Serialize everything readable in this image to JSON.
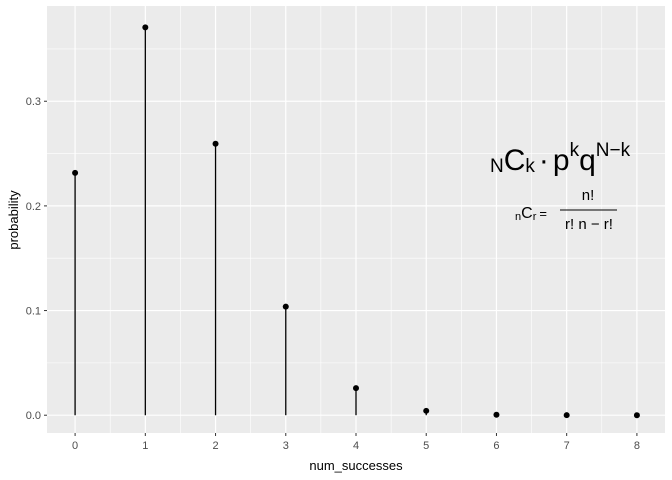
{
  "chart_data": {
    "type": "lollipop",
    "xlabel": "num_successes",
    "ylabel": "probability",
    "x": [
      0,
      1,
      2,
      3,
      4,
      5,
      6,
      7,
      8
    ],
    "values": [
      0.2316,
      0.3706,
      0.2594,
      0.1038,
      0.0259,
      0.0042,
      0.0004,
      2e-05,
      1e-06
    ],
    "xlim": [
      -0.4,
      8.4
    ],
    "ylim": [
      -0.017,
      0.391
    ],
    "y_ticks": [
      0.0,
      0.1,
      0.2,
      0.3
    ],
    "y_tick_labels": [
      "0.0",
      "0.1",
      "0.2",
      "0.3"
    ],
    "x_tick_labels": [
      "0",
      "1",
      "2",
      "3",
      "4",
      "5",
      "6",
      "7",
      "8"
    ],
    "grid": true,
    "panel_background": "#ebebeb",
    "grid_color": "#ffffff",
    "mark_color": "#000000"
  },
  "annotations": {
    "formula_main": {
      "sub_n": "N",
      "c": "C",
      "sub_k": "k",
      "dot": "·",
      "p": "p",
      "sup_k": "k",
      "q": "q",
      "sup_nk": "N−k"
    },
    "formula_comb": {
      "sub_n": "n",
      "c": "C",
      "sub_r": "r",
      "equals": "=",
      "numerator": "n!",
      "denominator": "r! n − r!"
    }
  }
}
